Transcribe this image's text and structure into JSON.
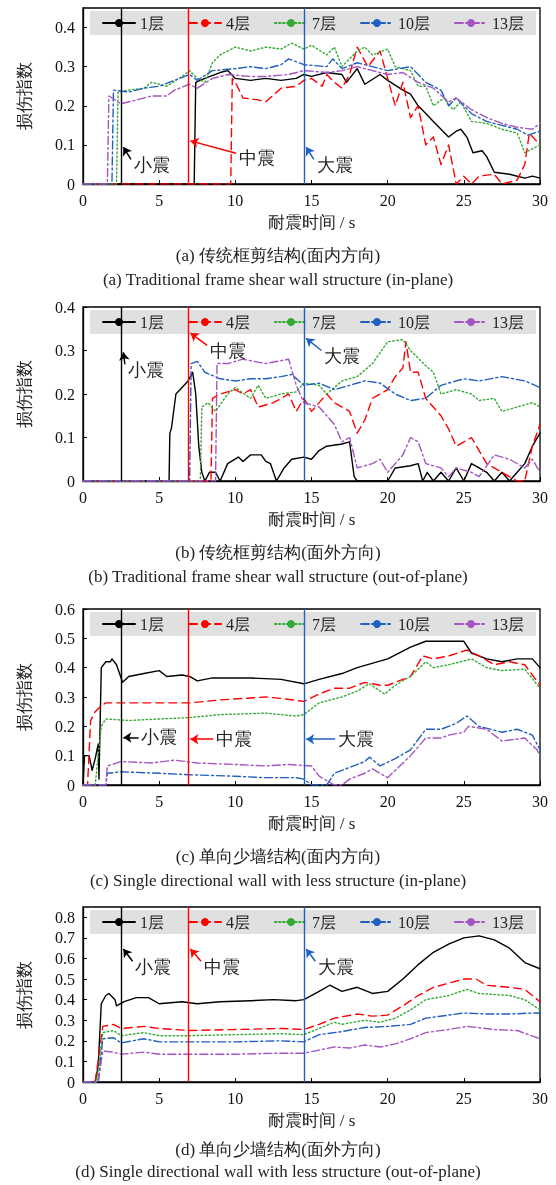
{
  "chart_data": [
    {
      "type": "line",
      "title": "(a) 传统框剪结构(面内方向)",
      "subtitle": "(a) Traditional frame shear wall structure (in-plane)",
      "xlabel": "耐震时间 / s",
      "ylabel": "损伤指数",
      "xlim": [
        0,
        30
      ],
      "xticks": [
        0,
        5,
        10,
        15,
        20,
        25,
        30
      ],
      "ylim": [
        0,
        0.45
      ],
      "yticks": [
        0,
        0.1,
        0.2,
        0.3,
        0.4
      ],
      "legend": "top",
      "grid": false,
      "ref_lines": [
        {
          "axis": "x",
          "value": 2.5,
          "color": "#000000",
          "label": "小震"
        },
        {
          "axis": "x",
          "value": 6.9,
          "color": "#ff0000",
          "label": "中震"
        },
        {
          "axis": "x",
          "value": 14.5,
          "color": "#2060c0",
          "label": "大震"
        }
      ],
      "series": [
        {
          "name": "1层",
          "color": "#000000",
          "line_style": "solid",
          "x": [
            0,
            7.3,
            7.4,
            8,
            9,
            9.5,
            10,
            11,
            12,
            13,
            14,
            14.5,
            15,
            16,
            17,
            17.3,
            18,
            18.5,
            19.5,
            20,
            21,
            21.5,
            22,
            22.5,
            23,
            23.5,
            24,
            24.5,
            24.8,
            25.2,
            25.6,
            26.2,
            26.5,
            27,
            28,
            29,
            29.5,
            30
          ],
          "values": [
            0,
            0,
            0.26,
            0.27,
            0.285,
            0.29,
            0.27,
            0.265,
            0.27,
            0.265,
            0.27,
            0.28,
            0.275,
            0.285,
            0.28,
            0.26,
            0.295,
            0.255,
            0.28,
            0.265,
            0.24,
            0.23,
            0.2,
            0.18,
            0.16,
            0.14,
            0.12,
            0.135,
            0.14,
            0.12,
            0.08,
            0.085,
            0.07,
            0.03,
            0.025,
            0.015,
            0.02,
            0.015
          ]
        },
        {
          "name": "4层",
          "color": "#ff0000",
          "line_style": "dashed",
          "x": [
            0,
            9.7,
            9.8,
            10,
            10.5,
            11.5,
            12,
            13,
            14,
            14.5,
            15,
            15.7,
            16,
            16.5,
            17,
            17.5,
            18,
            18.7,
            19.5,
            20,
            20.5,
            21,
            21.5,
            22,
            22.5,
            23,
            23.5,
            24,
            24.5,
            25,
            25.5,
            26,
            27,
            27.5,
            28.5,
            29,
            29.3,
            30
          ],
          "values": [
            0,
            0,
            0.27,
            0.26,
            0.22,
            0.215,
            0.21,
            0.245,
            0.25,
            0.265,
            0.27,
            0.25,
            0.28,
            0.26,
            0.245,
            0.28,
            0.35,
            0.3,
            0.34,
            0.27,
            0.2,
            0.26,
            0.17,
            0.2,
            0.1,
            0.12,
            0.05,
            0.1,
            0,
            0.02,
            0,
            0.02,
            0.025,
            0,
            0.01,
            0.05,
            0.13,
            0.1
          ]
        },
        {
          "name": "7层",
          "color": "#33aa33",
          "line_style": "dotted",
          "x": [
            0,
            2.2,
            2.3,
            3,
            4,
            4.5,
            5.5,
            6.5,
            7,
            7.5,
            8,
            8.5,
            9,
            10,
            11,
            12,
            13,
            13.7,
            14.5,
            15,
            16,
            16.5,
            17,
            18,
            18.5,
            19,
            20,
            20.5,
            21.5,
            22,
            22.5,
            23,
            23.7,
            24.3,
            24.8,
            25.5,
            26.5,
            27.5,
            28.5,
            29,
            30
          ],
          "values": [
            0,
            0,
            0.235,
            0.24,
            0.245,
            0.26,
            0.25,
            0.275,
            0.29,
            0.27,
            0.26,
            0.31,
            0.33,
            0.35,
            0.34,
            0.35,
            0.345,
            0.36,
            0.345,
            0.355,
            0.33,
            0.35,
            0.3,
            0.34,
            0.35,
            0.33,
            0.345,
            0.3,
            0.29,
            0.25,
            0.25,
            0.2,
            0.22,
            0.19,
            0.21,
            0.16,
            0.155,
            0.14,
            0.13,
            0.08,
            0.1
          ]
        },
        {
          "name": "10层",
          "color": "#1f5fbf",
          "line_style": "dashdot",
          "x": [
            0,
            1.9,
            2,
            3,
            4,
            5,
            6,
            7,
            7.5,
            8.5,
            10,
            11,
            12,
            13,
            13.5,
            14.5,
            16,
            16.4,
            17,
            18,
            19,
            20,
            21.5,
            22.5,
            23.5,
            24,
            24.5,
            25.5,
            26.5,
            27.5,
            28.5,
            29.2,
            30
          ],
          "values": [
            0,
            0,
            0.24,
            0.235,
            0.245,
            0.25,
            0.265,
            0.28,
            0.265,
            0.29,
            0.295,
            0.3,
            0.295,
            0.305,
            0.32,
            0.305,
            0.3,
            0.32,
            0.295,
            0.31,
            0.3,
            0.29,
            0.3,
            0.26,
            0.24,
            0.2,
            0.22,
            0.18,
            0.16,
            0.15,
            0.14,
            0.125,
            0.135
          ]
        },
        {
          "name": "13层",
          "color": "#a455c2",
          "line_style": "dashdot",
          "x": [
            0,
            1.6,
            1.7,
            2.5,
            3.5,
            4.5,
            5.5,
            6,
            7,
            7.5,
            8.5,
            9.5,
            11,
            12,
            13.5,
            14.5,
            16,
            17,
            18,
            19,
            20,
            21,
            22,
            23,
            24,
            24.5,
            25.5,
            26.5,
            27.5,
            28.5,
            29.5,
            30
          ],
          "values": [
            0,
            0,
            0.225,
            0.205,
            0.215,
            0.225,
            0.225,
            0.24,
            0.255,
            0.245,
            0.27,
            0.28,
            0.275,
            0.275,
            0.28,
            0.29,
            0.285,
            0.29,
            0.3,
            0.29,
            0.28,
            0.285,
            0.26,
            0.245,
            0.21,
            0.22,
            0.19,
            0.17,
            0.155,
            0.145,
            0.14,
            0.155
          ]
        }
      ]
    },
    {
      "type": "line",
      "title": "(b) 传统框剪结构(面外方向)",
      "subtitle": "(b) Traditional frame shear wall structure (out-of-plane)",
      "xlabel": "耐震时间 / s",
      "ylabel": "损伤指数",
      "xlim": [
        0,
        30
      ],
      "xticks": [
        0,
        5,
        10,
        15,
        20,
        25,
        30
      ],
      "ylim": [
        0,
        0.4
      ],
      "yticks": [
        0,
        0.1,
        0.2,
        0.3,
        0.4
      ],
      "legend": "top",
      "grid": false,
      "ref_lines": [
        {
          "axis": "x",
          "value": 2.5,
          "color": "#000000",
          "label": "小震"
        },
        {
          "axis": "x",
          "value": 6.9,
          "color": "#ff0000",
          "label": "中震"
        },
        {
          "axis": "x",
          "value": 14.5,
          "color": "#2060c0",
          "label": "大震"
        }
      ],
      "series": [
        {
          "name": "1层",
          "color": "#000000",
          "line_style": "solid",
          "x": [
            0,
            5.65,
            5.7,
            5.8,
            6.1,
            6.5,
            6.9,
            7.2,
            7.4,
            7.6,
            7.8,
            8,
            8.3,
            8.7,
            9,
            9.5,
            10.2,
            10.5,
            11,
            11.7,
            12,
            12.3,
            12.7,
            13.2,
            13.7,
            14.5,
            15,
            15.5,
            16,
            17,
            17.5,
            17.8,
            18,
            19.5,
            20,
            20.5,
            21.5,
            22,
            22.3,
            22.6,
            23,
            23.5,
            24,
            24.5,
            25,
            25.5,
            26,
            26.5,
            27,
            27.5,
            28,
            28.5,
            29,
            29.5,
            30
          ],
          "values": [
            0,
            0,
            0.11,
            0.12,
            0.2,
            0.215,
            0.23,
            0.25,
            0.2,
            0.08,
            0.02,
            0,
            0.02,
            0.02,
            0,
            0.04,
            0.055,
            0.045,
            0.06,
            0.06,
            0.045,
            0.04,
            0,
            0.03,
            0.05,
            0.055,
            0.05,
            0.07,
            0.08,
            0.085,
            0.09,
            0.01,
            0,
            0,
            0,
            0.03,
            0.035,
            0.04,
            0,
            0.02,
            0,
            0.02,
            0,
            0.03,
            0,
            0.04,
            0.03,
            0.02,
            0,
            0.02,
            0,
            0.02,
            0.04,
            0.08,
            0.11
          ]
        },
        {
          "name": "4层",
          "color": "#ff0000",
          "line_style": "dashed",
          "x": [
            0,
            8.4,
            8.5,
            9,
            10,
            10.5,
            11,
            11.5,
            12.5,
            13.5,
            14,
            14.5,
            15,
            16,
            16.5,
            17.5,
            18,
            18.5,
            19,
            20,
            20.5,
            21,
            21.2,
            21.5,
            22,
            22.5,
            23.5,
            24,
            24.5,
            25.5,
            26.5,
            27.5,
            28.5,
            29,
            29.5,
            30
          ],
          "values": [
            0,
            0,
            0.19,
            0.2,
            0.21,
            0.2,
            0.21,
            0.17,
            0.18,
            0.2,
            0.16,
            0.19,
            0.16,
            0.2,
            0.18,
            0.16,
            0.11,
            0.14,
            0.19,
            0.21,
            0.24,
            0.26,
            0.32,
            0.25,
            0.25,
            0.19,
            0.15,
            0.12,
            0.08,
            0.1,
            0.04,
            0.02,
            0,
            0,
            0.08,
            0.13
          ]
        },
        {
          "name": "7层",
          "color": "#33aa33",
          "line_style": "dotted",
          "x": [
            0,
            7.7,
            7.8,
            8.2,
            8.7,
            9.5,
            10,
            11,
            11.5,
            12,
            13,
            14,
            14.5,
            15.5,
            16,
            17,
            18,
            19,
            20,
            21,
            21.5,
            22.5,
            23,
            23.5,
            24.5,
            25.5,
            26,
            27,
            27.5,
            28.5,
            29.5,
            30
          ],
          "values": [
            0,
            0,
            0.17,
            0.18,
            0.16,
            0.2,
            0.215,
            0.19,
            0.22,
            0.19,
            0.2,
            0.205,
            0.225,
            0.22,
            0.2,
            0.23,
            0.24,
            0.27,
            0.32,
            0.325,
            0.3,
            0.265,
            0.25,
            0.2,
            0.21,
            0.2,
            0.185,
            0.19,
            0.16,
            0.17,
            0.18,
            0.17
          ]
        },
        {
          "name": "10层",
          "color": "#1f5fbf",
          "line_style": "dashdot",
          "x": [
            0,
            7,
            7.1,
            7.5,
            8,
            9,
            10,
            11,
            12,
            13,
            13.7,
            14.5,
            15.5,
            16.5,
            17.5,
            18.5,
            19.5,
            20.5,
            21.5,
            22.5,
            23.5,
            25,
            26,
            27.5,
            29,
            30
          ],
          "values": [
            0,
            0,
            0.27,
            0.275,
            0.25,
            0.235,
            0.23,
            0.235,
            0.235,
            0.24,
            0.245,
            0.22,
            0.225,
            0.21,
            0.22,
            0.23,
            0.225,
            0.2,
            0.185,
            0.19,
            0.22,
            0.235,
            0.23,
            0.24,
            0.23,
            0.215
          ]
        },
        {
          "name": "13层",
          "color": "#a455c2",
          "line_style": "dashdot",
          "x": [
            0,
            8.7,
            8.8,
            9.5,
            10.5,
            12,
            13.5,
            14,
            14.5,
            15.5,
            16.5,
            17,
            17.5,
            18,
            19,
            19.5,
            20,
            21,
            21.5,
            22,
            22.5,
            23.5,
            24,
            24.5,
            25.5,
            26,
            27,
            28,
            29,
            29.5,
            30
          ],
          "values": [
            0,
            0,
            0.27,
            0.27,
            0.28,
            0.27,
            0.28,
            0.22,
            0.18,
            0.17,
            0.13,
            0.09,
            0.1,
            0.03,
            0.04,
            0.05,
            0.02,
            0.06,
            0.1,
            0.09,
            0.04,
            0.03,
            0.01,
            0.03,
            0.02,
            0.01,
            0.06,
            0.05,
            0.03,
            0.05,
            0.02
          ]
        }
      ]
    },
    {
      "type": "line",
      "title": "(c) 单向少墙结构(面内方向)",
      "subtitle": "(c) Single directional wall with less structure (in-plane)",
      "xlabel": "耐震时间 / s",
      "ylabel": "损伤指数",
      "xlim": [
        0,
        30
      ],
      "xticks": [
        0,
        5,
        10,
        15,
        20,
        25,
        30
      ],
      "ylim": [
        0,
        0.6
      ],
      "yticks": [
        0,
        0.1,
        0.2,
        0.3,
        0.4,
        0.5,
        0.6
      ],
      "legend": "top",
      "grid": false,
      "ref_lines": [
        {
          "axis": "x",
          "value": 2.5,
          "color": "#000000",
          "label": "小震"
        },
        {
          "axis": "x",
          "value": 6.9,
          "color": "#ff0000",
          "label": "中震"
        },
        {
          "axis": "x",
          "value": 14.5,
          "color": "#2060c0",
          "label": "大震"
        }
      ],
      "series": [
        {
          "name": "1层",
          "color": "#000000",
          "line_style": "solid",
          "x": [
            0,
            0.1,
            0.4,
            0.6,
            0.8,
            1,
            1.05,
            1.2,
            1.5,
            1.8,
            1.9,
            2.2,
            2.6,
            3,
            4,
            5,
            5.5,
            6.5,
            7,
            7.5,
            8.5,
            11,
            13,
            14.5,
            15.5,
            17,
            18,
            20,
            21.5,
            22.5,
            24,
            25,
            25.5,
            26.5,
            27.5,
            28.5,
            29.5,
            30
          ],
          "values": [
            0,
            0.1,
            0.1,
            0.05,
            0.09,
            0.14,
            0.02,
            0.4,
            0.42,
            0.42,
            0.43,
            0.41,
            0.35,
            0.37,
            0.38,
            0.39,
            0.37,
            0.375,
            0.37,
            0.355,
            0.365,
            0.365,
            0.36,
            0.345,
            0.36,
            0.38,
            0.4,
            0.43,
            0.47,
            0.49,
            0.49,
            0.49,
            0.45,
            0.43,
            0.42,
            0.43,
            0.43,
            0.4
          ]
        },
        {
          "name": "4层",
          "color": "#ff0000",
          "line_style": "dashed",
          "x": [
            0,
            0.3,
            0.5,
            0.8,
            1.2,
            1.5,
            3,
            5,
            7,
            9,
            12,
            13,
            14.5,
            15.5,
            16.5,
            17.5,
            18.5,
            19.5,
            20,
            21.5,
            22.3,
            23,
            24,
            25.2,
            26,
            27,
            28,
            29,
            30
          ],
          "values": [
            0,
            0,
            0.22,
            0.25,
            0.27,
            0.28,
            0.28,
            0.28,
            0.28,
            0.29,
            0.3,
            0.295,
            0.285,
            0.31,
            0.33,
            0.33,
            0.35,
            0.34,
            0.34,
            0.37,
            0.44,
            0.43,
            0.44,
            0.46,
            0.44,
            0.41,
            0.42,
            0.41,
            0.34
          ]
        },
        {
          "name": "7层",
          "color": "#33aa33",
          "line_style": "dotted",
          "x": [
            0,
            0.8,
            1.2,
            1.5,
            3,
            5,
            7,
            9,
            12,
            14,
            14.5,
            15.5,
            17,
            18,
            18.8,
            19.8,
            20.5,
            21.5,
            22.5,
            23,
            24,
            25.5,
            26.5,
            27.5,
            29,
            30
          ],
          "values": [
            0,
            0,
            0.2,
            0.225,
            0.22,
            0.225,
            0.23,
            0.24,
            0.245,
            0.235,
            0.24,
            0.28,
            0.3,
            0.32,
            0.345,
            0.31,
            0.34,
            0.37,
            0.42,
            0.4,
            0.41,
            0.43,
            0.4,
            0.39,
            0.395,
            0.33
          ]
        },
        {
          "name": "10层",
          "color": "#1f5fbf",
          "line_style": "dashdot",
          "x": [
            0,
            1.5,
            1.6,
            2.5,
            5,
            7,
            10,
            12,
            14,
            14.5,
            15,
            16,
            16.5,
            17.5,
            18.5,
            18.8,
            19.5,
            20.5,
            21.5,
            22.5,
            23.5,
            24,
            24.5,
            25.2,
            26,
            27.5,
            28.5,
            29.5,
            30
          ],
          "values": [
            0,
            0,
            0.04,
            0.045,
            0.04,
            0.035,
            0.03,
            0.025,
            0.025,
            0.02,
            0,
            0,
            0.04,
            0.06,
            0.08,
            0.095,
            0.065,
            0.09,
            0.12,
            0.19,
            0.19,
            0.2,
            0.21,
            0.235,
            0.2,
            0.18,
            0.19,
            0.17,
            0.12
          ]
        },
        {
          "name": "13层",
          "color": "#a455c2",
          "line_style": "dashdot",
          "x": [
            0,
            1.5,
            1.6,
            2.5,
            4.5,
            6,
            7.5,
            10,
            12,
            13.5,
            15,
            15.5,
            16.5,
            17,
            17.5,
            18.5,
            19,
            20,
            21.5,
            22.5,
            23.5,
            24,
            25,
            25.3,
            26.5,
            27.5,
            29,
            29.8,
            30
          ],
          "values": [
            0,
            0,
            0.065,
            0.08,
            0.075,
            0.085,
            0.075,
            0.07,
            0.065,
            0.07,
            0.065,
            0.03,
            0,
            0,
            0.02,
            0.04,
            0.055,
            0.025,
            0.1,
            0.16,
            0.16,
            0.17,
            0.18,
            0.2,
            0.19,
            0.15,
            0.16,
            0.12,
            0.1
          ]
        }
      ]
    },
    {
      "type": "line",
      "title": "(d) 单向少墙结构(面外方向)",
      "subtitle": "(d) Single directional wall with less structure (out-of-plane)",
      "xlabel": "耐震时间 / s",
      "ylabel": "损伤指数",
      "xlim": [
        0,
        30
      ],
      "xticks": [
        0,
        5,
        10,
        15,
        20,
        25,
        30
      ],
      "ylim": [
        0,
        0.85
      ],
      "yticks": [
        0,
        0.1,
        0.2,
        0.3,
        0.4,
        0.5,
        0.6,
        0.7,
        0.8
      ],
      "legend": "top",
      "grid": false,
      "ref_lines": [
        {
          "axis": "x",
          "value": 2.5,
          "color": "#000000",
          "label": "小震"
        },
        {
          "axis": "x",
          "value": 6.9,
          "color": "#ff0000",
          "label": "中震"
        },
        {
          "axis": "x",
          "value": 14.5,
          "color": "#2060c0",
          "label": "大震"
        }
      ],
      "series": [
        {
          "name": "1层",
          "color": "#000000",
          "line_style": "solid",
          "x": [
            0,
            0.8,
            1,
            1.2,
            1.5,
            1.7,
            2.1,
            2.2,
            2.7,
            3.5,
            4.3,
            5,
            6.5,
            7.5,
            9,
            11,
            12.5,
            14,
            14.5,
            15.5,
            16.2,
            17,
            18,
            19,
            20,
            21,
            22,
            23,
            24,
            25,
            26,
            27,
            28,
            29,
            30
          ],
          "values": [
            0,
            0,
            0.08,
            0.38,
            0.42,
            0.43,
            0.4,
            0.37,
            0.39,
            0.41,
            0.41,
            0.38,
            0.39,
            0.38,
            0.39,
            0.395,
            0.4,
            0.395,
            0.4,
            0.44,
            0.47,
            0.44,
            0.46,
            0.43,
            0.44,
            0.5,
            0.57,
            0.63,
            0.67,
            0.7,
            0.71,
            0.69,
            0.65,
            0.58,
            0.55
          ]
        },
        {
          "name": "4层",
          "color": "#ff0000",
          "line_style": "dashed",
          "x": [
            0,
            0.8,
            1.3,
            2,
            2.5,
            4,
            5,
            7,
            10,
            13,
            14.5,
            15.5,
            16.5,
            18,
            19,
            20,
            21,
            22,
            23,
            24,
            25,
            25.8,
            26.5,
            28,
            29,
            30
          ],
          "values": [
            0,
            0,
            0.27,
            0.28,
            0.26,
            0.27,
            0.26,
            0.25,
            0.255,
            0.26,
            0.255,
            0.28,
            0.31,
            0.33,
            0.32,
            0.325,
            0.37,
            0.42,
            0.46,
            0.48,
            0.5,
            0.5,
            0.47,
            0.46,
            0.45,
            0.39
          ]
        },
        {
          "name": "7层",
          "color": "#33aa33",
          "line_style": "dotted",
          "x": [
            0,
            0.9,
            1.3,
            2,
            2.5,
            4,
            5,
            7,
            10,
            13,
            14.5,
            15.5,
            16.5,
            17,
            18.5,
            19.5,
            20.5,
            21.5,
            22.5,
            24,
            25.2,
            26,
            28,
            29,
            30
          ],
          "values": [
            0,
            0,
            0.24,
            0.25,
            0.225,
            0.24,
            0.225,
            0.225,
            0.23,
            0.235,
            0.23,
            0.26,
            0.29,
            0.28,
            0.3,
            0.29,
            0.31,
            0.35,
            0.4,
            0.42,
            0.45,
            0.43,
            0.42,
            0.4,
            0.35
          ]
        },
        {
          "name": "10层",
          "color": "#1f5fbf",
          "line_style": "dashdot",
          "x": [
            0,
            1,
            1.3,
            2,
            2.5,
            4,
            5,
            7,
            10,
            13,
            14.5,
            15.5,
            17,
            18.5,
            20,
            21.5,
            22.5,
            24,
            25,
            26.5,
            28,
            29.5,
            30
          ],
          "values": [
            0,
            0,
            0.21,
            0.215,
            0.19,
            0.21,
            0.195,
            0.195,
            0.195,
            0.2,
            0.195,
            0.23,
            0.245,
            0.265,
            0.27,
            0.28,
            0.31,
            0.325,
            0.335,
            0.33,
            0.33,
            0.335,
            0.335
          ]
        },
        {
          "name": "13层",
          "color": "#a455c2",
          "line_style": "dashdot",
          "x": [
            0,
            1,
            1.3,
            2,
            2.5,
            4,
            5,
            7,
            10,
            13,
            14.5,
            15.5,
            16.5,
            17.5,
            18.5,
            19.5,
            20.5,
            21.5,
            22.5,
            24,
            25.2,
            27,
            28.5,
            30
          ],
          "values": [
            0,
            0,
            0.15,
            0.145,
            0.135,
            0.145,
            0.135,
            0.135,
            0.135,
            0.14,
            0.14,
            0.155,
            0.17,
            0.165,
            0.18,
            0.17,
            0.185,
            0.21,
            0.24,
            0.255,
            0.27,
            0.255,
            0.25,
            0.21
          ]
        }
      ]
    }
  ]
}
